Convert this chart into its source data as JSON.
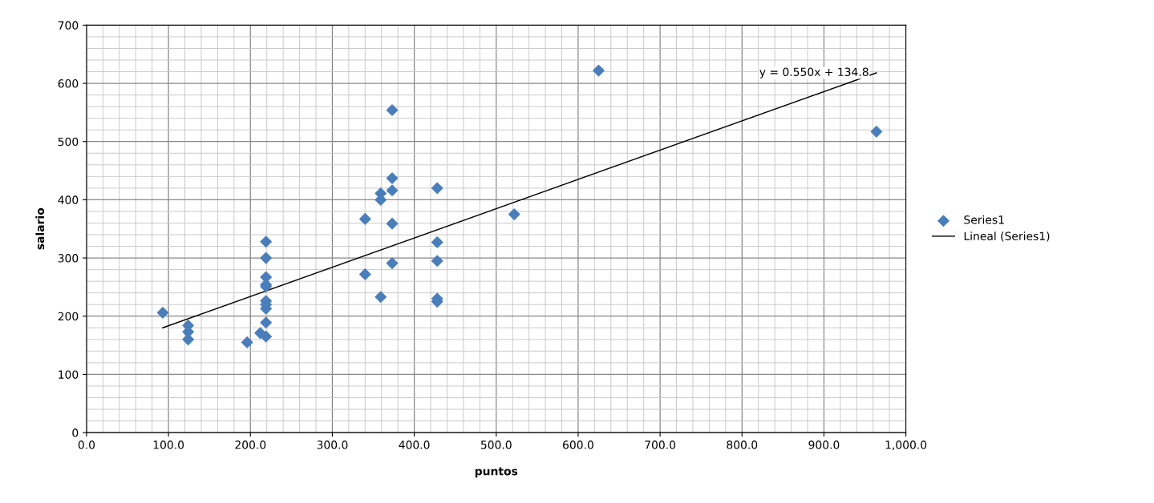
{
  "chart_data": {
    "type": "scatter",
    "xlabel": "puntos",
    "ylabel": "salario",
    "xlim": [
      0,
      1000
    ],
    "ylim": [
      0,
      700
    ],
    "xticks": [
      {
        "value": 0,
        "label": "0.0"
      },
      {
        "value": 100,
        "label": "100.0"
      },
      {
        "value": 200,
        "label": "200.0"
      },
      {
        "value": 300,
        "label": "300.0"
      },
      {
        "value": 400,
        "label": "400.0"
      },
      {
        "value": 500,
        "label": "500.0"
      },
      {
        "value": 600,
        "label": "600.0"
      },
      {
        "value": 700,
        "label": "700.0"
      },
      {
        "value": 800,
        "label": "800.0"
      },
      {
        "value": 900,
        "label": "900.0"
      },
      {
        "value": 1000,
        "label": "1,000.0"
      }
    ],
    "yticks": [
      0,
      100,
      200,
      300,
      400,
      500,
      600,
      700
    ],
    "grid": true,
    "legend": "right",
    "series": [
      {
        "name": "Series1",
        "marker": "diamond",
        "color": "#4a7ebb",
        "x": [
          93,
          124,
          124,
          124,
          196,
          212,
          219,
          219,
          219,
          219,
          219,
          219,
          219,
          219,
          219,
          219,
          373,
          373,
          373,
          359,
          359,
          340,
          373,
          428,
          428,
          373,
          428,
          340,
          359,
          428,
          428,
          625,
          964,
          522
        ],
        "values": [
          206,
          184,
          173,
          160,
          155,
          171,
          165,
          189,
          213,
          220,
          226,
          251,
          254,
          267,
          300,
          328,
          554,
          437,
          416,
          411,
          400,
          367,
          359,
          420,
          327,
          291,
          295,
          272,
          233,
          230,
          225,
          622,
          517,
          375
        ]
      },
      {
        "name": "Lineal (Series1)",
        "type": "line",
        "marker": "none",
        "line_style": "solid",
        "color": "#000000",
        "x": [
          93,
          964
        ],
        "values": [
          180,
          618
        ]
      }
    ],
    "annotations": [
      {
        "text": "y = 0.550x + 134.8",
        "x": 955,
        "y": 618
      }
    ]
  }
}
